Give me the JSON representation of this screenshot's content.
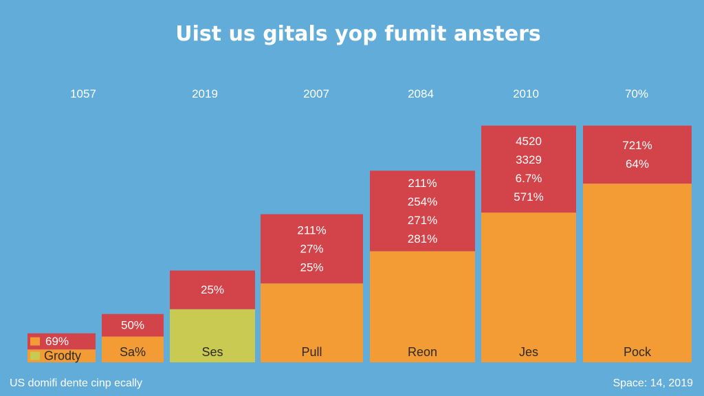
{
  "chart_data": {
    "type": "bar",
    "stacked": true,
    "title": "Uist us gitals yop fumit ansters",
    "column_labels": [
      "1057",
      "2019",
      "2007",
      "2084",
      "2010",
      "70%"
    ],
    "categories": [
      "Grodty",
      "Sa%",
      "Ses",
      "Pull",
      "Reon",
      "Jes",
      "Pock"
    ],
    "series": [
      {
        "values": [
          0.8,
          1.6,
          3.3,
          4.9,
          6.9,
          9.3,
          11.1
        ],
        "color": "#f39c35"
      },
      {
        "values": [
          1.0,
          1.4,
          2.4,
          4.3,
          5.0,
          5.4,
          3.6
        ],
        "color": "#d2444a"
      }
    ],
    "bottom_override": [
      {
        "index": 2,
        "color": "#c9ca52"
      }
    ],
    "ylim": [
      0,
      15.5
    ],
    "top_labels": [
      [
        "69%"
      ],
      [
        "50%"
      ],
      [
        "25%"
      ],
      [
        "211%",
        "27%",
        "25%"
      ],
      [
        "211%",
        "254%",
        "271%",
        "281%"
      ],
      [
        "4520",
        "3329",
        "6.7%",
        "571%"
      ],
      [
        "721%",
        "64%"
      ]
    ],
    "footer_left": "US domifi dente cinp ecally",
    "footer_right": "Space: 14, 2019",
    "grid": false,
    "legend": "none"
  }
}
